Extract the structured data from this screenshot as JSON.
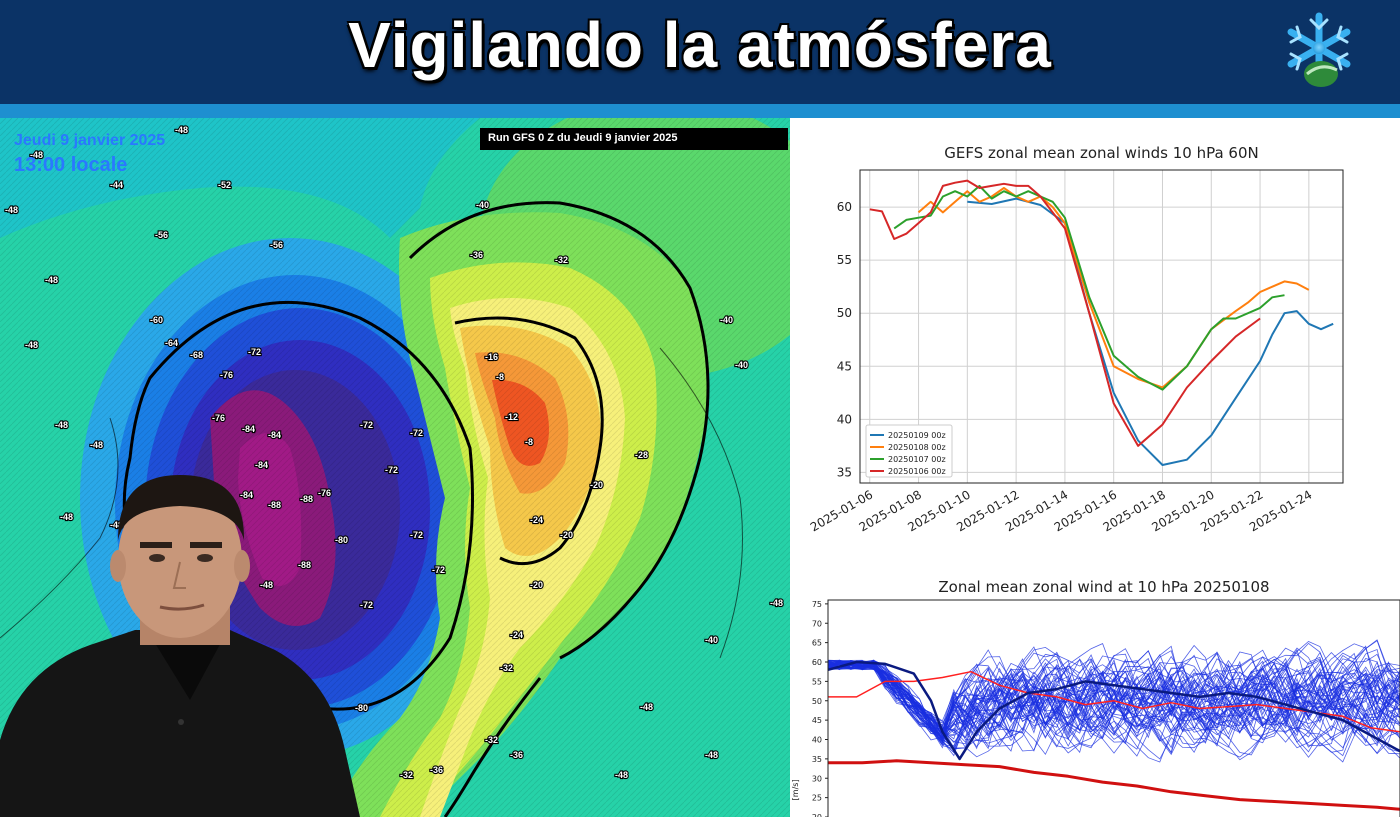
{
  "banner": {
    "title": "Vigilando la atmósfera",
    "logo_icon": "snowflake-logo-icon",
    "colors": {
      "background": "#0b3366",
      "stripe": "#1e8fd0",
      "title": "#ffffff"
    }
  },
  "map": {
    "date_label": "Jeudi 9 janvier 2025",
    "time_label": "13:00 locale",
    "run_label": "Run GFS 0 Z du Jeudi 9 janvier 2025",
    "isotherm_labels": [
      "-48",
      "-44",
      "-52",
      "-56",
      "-60",
      "-64",
      "-68",
      "-72",
      "-76",
      "-80",
      "-84",
      "-88",
      "-40",
      "-36",
      "-32",
      "-28",
      "-24",
      "-20",
      "-16",
      "-12",
      "-8"
    ],
    "colors": {
      "cold_core": "#8a1a7a",
      "cold": "#1a2fb8",
      "mid": "#22c9a6",
      "warm": "#f0f060",
      "warm_core": "#ee5522"
    }
  },
  "chart_data": [
    {
      "type": "line",
      "title": "GEFS zonal mean zonal winds 10 hPa 60N",
      "x_tick_labels": [
        "2025-01-06",
        "2025-01-08",
        "2025-01-10",
        "2025-01-12",
        "2025-01-14",
        "2025-01-16",
        "2025-01-18",
        "2025-01-20",
        "2025-01-22",
        "2025-01-24"
      ],
      "y_tick_labels": [
        "35",
        "40",
        "45",
        "50",
        "55",
        "60"
      ],
      "x_range": [
        -0.4,
        19.4
      ],
      "ylim": [
        34,
        63.5
      ],
      "grid": true,
      "legend_position": "bottom-left",
      "series": [
        {
          "name": "20250109 00z",
          "color": "#1f77b4",
          "x": [
            4,
            5,
            6,
            7,
            8,
            9,
            10,
            11,
            12,
            13,
            14,
            15,
            16,
            16.5,
            17,
            17.5,
            18,
            18.5,
            19
          ],
          "y": [
            60.5,
            60.3,
            60.8,
            60.2,
            58.5,
            50,
            42.5,
            38,
            35.7,
            36.2,
            38.5,
            42,
            45.5,
            48,
            50,
            50.2,
            49,
            48.5,
            49
          ]
        },
        {
          "name": "20250108 00z",
          "color": "#ff7f0e",
          "x": [
            2,
            2.5,
            3,
            3.5,
            4,
            4.5,
            5,
            5.5,
            6,
            6.5,
            7,
            7.5,
            8,
            9,
            10,
            11,
            12,
            12.5,
            13,
            14,
            15,
            15.5,
            16,
            16.5,
            17,
            17.5,
            18
          ],
          "y": [
            59.5,
            60.5,
            59.5,
            60.5,
            61.5,
            60.5,
            61,
            61.8,
            61,
            60.5,
            61,
            60,
            58.5,
            51,
            45,
            43.8,
            43,
            44,
            45,
            48.5,
            50.2,
            51,
            52,
            52.5,
            53,
            52.8,
            52.2
          ]
        },
        {
          "name": "20250107 00z",
          "color": "#2ca02c",
          "x": [
            1,
            1.5,
            2,
            2.5,
            3,
            3.5,
            4,
            4.5,
            5,
            5.5,
            6,
            6.5,
            7,
            7.5,
            8,
            9,
            10,
            11,
            12,
            13,
            14,
            14.5,
            15,
            16,
            16.5,
            17
          ],
          "y": [
            58,
            58.8,
            59,
            59.2,
            61,
            61.5,
            61,
            62,
            60.8,
            61.5,
            61,
            61.5,
            61,
            60.5,
            59,
            51.5,
            46,
            44,
            42.8,
            45,
            48.5,
            49.5,
            49.5,
            50.5,
            51.5,
            51.7
          ]
        },
        {
          "name": "20250106 00z",
          "color": "#d62728",
          "x": [
            0,
            0.5,
            1,
            1.5,
            2,
            2.5,
            3,
            3.5,
            4,
            4.5,
            5,
            5.5,
            6,
            6.5,
            7,
            8,
            9,
            10,
            11,
            12,
            13,
            14,
            15,
            16
          ],
          "y": [
            59.8,
            59.6,
            57,
            57.5,
            58.5,
            59.5,
            62,
            62.3,
            62.5,
            61.8,
            62,
            62.2,
            62,
            62,
            61,
            58,
            50,
            41.5,
            37.5,
            39.5,
            43,
            45.5,
            47.8,
            49.5
          ]
        }
      ]
    },
    {
      "type": "line",
      "title": "Zonal mean zonal wind at 10 hPa 20250108",
      "ylabel": "[m/s]",
      "y_tick_labels": [
        "20",
        "25",
        "30",
        "35",
        "40",
        "45",
        "50",
        "55",
        "60",
        "65",
        "70",
        "75"
      ],
      "ylim": [
        20,
        76
      ],
      "x_range": [
        0,
        100
      ],
      "ensemble_member_count": 60,
      "series": [
        {
          "name": "",
          "color": "#d01010",
          "x": [
            0,
            6,
            12,
            18,
            24,
            30,
            36,
            42,
            48,
            54,
            60,
            66,
            72,
            78,
            84,
            90,
            96,
            100
          ],
          "y": [
            34,
            34,
            34.5,
            34,
            33.5,
            33,
            31.5,
            30.5,
            29,
            28,
            26.5,
            25.5,
            24.5,
            24,
            23.5,
            23,
            22.5,
            22
          ]
        },
        {
          "name": "",
          "color": "#ff2020",
          "x": [
            0,
            5,
            10,
            15,
            20,
            25,
            30,
            35,
            40,
            45,
            50,
            55,
            60,
            65,
            70,
            75,
            80,
            85,
            90,
            95,
            100
          ],
          "y": [
            51,
            51,
            55,
            55,
            56,
            57.5,
            54,
            52,
            51,
            49,
            50,
            48,
            49.5,
            48,
            48.5,
            49,
            48,
            47,
            46,
            43,
            42
          ]
        },
        {
          "name": "",
          "color": "#0a1a80",
          "x": [
            0,
            5,
            10,
            15,
            18,
            20,
            23,
            26,
            30,
            35,
            40,
            45,
            50,
            55,
            60,
            65,
            70,
            75,
            80,
            85,
            90,
            95,
            100
          ],
          "y": [
            58,
            60,
            59.5,
            57,
            50,
            42,
            35,
            42,
            48,
            52,
            53,
            55,
            54,
            53,
            52,
            51,
            52,
            51,
            49,
            47,
            45,
            41,
            37
          ]
        }
      ]
    }
  ]
}
